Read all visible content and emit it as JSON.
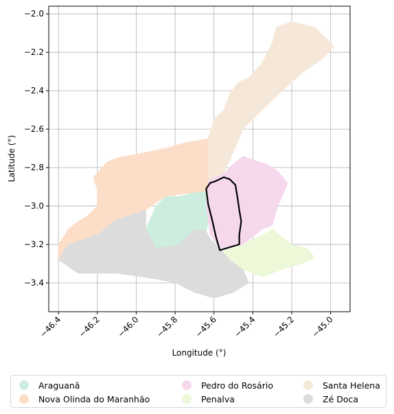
{
  "chart_data": {
    "type": "map",
    "xlabel": "Longitude (°)",
    "ylabel": "Latitude (°)",
    "xlim": [
      -46.45,
      -44.9
    ],
    "ylim": [
      -3.55,
      -1.96
    ],
    "x_ticks": [
      -46.4,
      -46.2,
      -46.0,
      -45.8,
      -45.6,
      -45.4,
      -45.2,
      -45.0
    ],
    "x_tick_labels": [
      "−46.4",
      "−46.2",
      "−46.0",
      "−45.8",
      "−45.6",
      "−45.4",
      "−45.2",
      "−45.0"
    ],
    "y_ticks": [
      -2.0,
      -2.2,
      -2.4,
      -2.6,
      -2.8,
      -3.0,
      -3.2,
      -3.4
    ],
    "y_tick_labels": [
      "−2.0",
      "−2.2",
      "−2.4",
      "−2.6",
      "−2.8",
      "−3.0",
      "−3.2",
      "−3.4"
    ],
    "grid": true,
    "legend_position": "bottom",
    "highlighted_region_outline": "#000000",
    "regions": [
      {
        "name": "Araguanã",
        "color": "#cdeede",
        "polygon": [
          [
            -45.85,
            -2.95
          ],
          [
            -45.78,
            -2.95
          ],
          [
            -45.7,
            -2.93
          ],
          [
            -45.63,
            -2.92
          ],
          [
            -45.62,
            -3.05
          ],
          [
            -45.64,
            -3.13
          ],
          [
            -45.7,
            -3.12
          ],
          [
            -45.78,
            -3.2
          ],
          [
            -45.9,
            -3.22
          ],
          [
            -45.95,
            -3.12
          ],
          [
            -45.9,
            -3.0
          ]
        ]
      },
      {
        "name": "Nova Olinda do Maranhão",
        "color": "#fcdec8",
        "polygon": [
          [
            -45.63,
            -2.65
          ],
          [
            -45.75,
            -2.67
          ],
          [
            -45.85,
            -2.7
          ],
          [
            -46.0,
            -2.73
          ],
          [
            -46.1,
            -2.75
          ],
          [
            -46.15,
            -2.77
          ],
          [
            -46.22,
            -2.85
          ],
          [
            -46.2,
            -2.92
          ],
          [
            -46.2,
            -3.0
          ],
          [
            -46.25,
            -3.05
          ],
          [
            -46.3,
            -3.08
          ],
          [
            -46.35,
            -3.12
          ],
          [
            -46.4,
            -3.2
          ],
          [
            -46.4,
            -3.28
          ],
          [
            -46.35,
            -3.2
          ],
          [
            -46.2,
            -3.15
          ],
          [
            -46.1,
            -3.07
          ],
          [
            -45.95,
            -3.02
          ],
          [
            -45.85,
            -2.95
          ],
          [
            -45.7,
            -2.93
          ],
          [
            -45.63,
            -2.92
          ]
        ]
      },
      {
        "name": "Pedro do Rosário",
        "color": "#f6d8ed",
        "polygon": [
          [
            -45.63,
            -2.87
          ],
          [
            -45.6,
            -2.85
          ],
          [
            -45.55,
            -2.83
          ],
          [
            -45.5,
            -2.78
          ],
          [
            -45.45,
            -2.74
          ],
          [
            -45.4,
            -2.76
          ],
          [
            -45.33,
            -2.78
          ],
          [
            -45.27,
            -2.82
          ],
          [
            -45.22,
            -2.88
          ],
          [
            -45.27,
            -3.0
          ],
          [
            -45.3,
            -3.1
          ],
          [
            -45.35,
            -3.12
          ],
          [
            -45.45,
            -3.2
          ],
          [
            -45.57,
            -3.22
          ],
          [
            -45.62,
            -3.15
          ],
          [
            -45.64,
            -3.0
          ]
        ]
      },
      {
        "name": "Penalva",
        "color": "#ecf8d8",
        "polygon": [
          [
            -45.45,
            -3.2
          ],
          [
            -45.35,
            -3.15
          ],
          [
            -45.3,
            -3.12
          ],
          [
            -45.2,
            -3.2
          ],
          [
            -45.12,
            -3.22
          ],
          [
            -45.08,
            -3.27
          ],
          [
            -45.15,
            -3.3
          ],
          [
            -45.25,
            -3.33
          ],
          [
            -45.35,
            -3.37
          ],
          [
            -45.45,
            -3.33
          ],
          [
            -45.52,
            -3.28
          ],
          [
            -45.57,
            -3.24
          ]
        ]
      },
      {
        "name": "Santa Helena",
        "color": "#f5e8d8",
        "polygon": [
          [
            -45.63,
            -2.65
          ],
          [
            -45.6,
            -2.55
          ],
          [
            -45.55,
            -2.5
          ],
          [
            -45.52,
            -2.42
          ],
          [
            -45.48,
            -2.36
          ],
          [
            -45.42,
            -2.33
          ],
          [
            -45.35,
            -2.25
          ],
          [
            -45.3,
            -2.15
          ],
          [
            -45.28,
            -2.07
          ],
          [
            -45.2,
            -2.04
          ],
          [
            -45.08,
            -2.07
          ],
          [
            -44.98,
            -2.17
          ],
          [
            -45.05,
            -2.24
          ],
          [
            -45.15,
            -2.31
          ],
          [
            -45.27,
            -2.42
          ],
          [
            -45.35,
            -2.5
          ],
          [
            -45.45,
            -2.6
          ],
          [
            -45.5,
            -2.72
          ],
          [
            -45.55,
            -2.83
          ],
          [
            -45.6,
            -2.85
          ],
          [
            -45.63,
            -2.87
          ]
        ]
      },
      {
        "name": "Zé Doca",
        "color": "#dcdcdc",
        "polygon": [
          [
            -46.4,
            -3.28
          ],
          [
            -46.35,
            -3.2
          ],
          [
            -46.2,
            -3.15
          ],
          [
            -46.1,
            -3.07
          ],
          [
            -45.95,
            -3.02
          ],
          [
            -45.95,
            -3.12
          ],
          [
            -45.9,
            -3.22
          ],
          [
            -45.78,
            -3.2
          ],
          [
            -45.7,
            -3.12
          ],
          [
            -45.64,
            -3.13
          ],
          [
            -45.6,
            -3.2
          ],
          [
            -45.57,
            -3.22
          ],
          [
            -45.52,
            -3.28
          ],
          [
            -45.45,
            -3.33
          ],
          [
            -45.42,
            -3.4
          ],
          [
            -45.5,
            -3.45
          ],
          [
            -45.6,
            -3.48
          ],
          [
            -45.7,
            -3.45
          ],
          [
            -45.8,
            -3.4
          ],
          [
            -45.9,
            -3.38
          ],
          [
            -46.1,
            -3.35
          ],
          [
            -46.3,
            -3.35
          ]
        ]
      }
    ],
    "highlight_outline": [
      [
        -45.59,
        -2.87
      ],
      [
        -45.55,
        -2.85
      ],
      [
        -45.52,
        -2.86
      ],
      [
        -45.49,
        -2.89
      ],
      [
        -45.48,
        -2.95
      ],
      [
        -45.47,
        -3.02
      ],
      [
        -45.46,
        -3.08
      ],
      [
        -45.47,
        -3.15
      ],
      [
        -45.47,
        -3.2
      ],
      [
        -45.57,
        -3.23
      ],
      [
        -45.59,
        -3.16
      ],
      [
        -45.61,
        -3.07
      ],
      [
        -45.63,
        -2.99
      ],
      [
        -45.64,
        -2.91
      ],
      [
        -45.62,
        -2.88
      ]
    ]
  },
  "legend": {
    "items": [
      {
        "label": "Araguanã",
        "color": "#cdeede"
      },
      {
        "label": "Nova Olinda do Maranhão",
        "color": "#fcdec8"
      },
      {
        "label": "Pedro do Rosário",
        "color": "#f6d8ed"
      },
      {
        "label": "Penalva",
        "color": "#ecf8d8"
      },
      {
        "label": "Santa Helena",
        "color": "#f5e8d8"
      },
      {
        "label": "Zé Doca",
        "color": "#dcdcdc"
      }
    ]
  }
}
